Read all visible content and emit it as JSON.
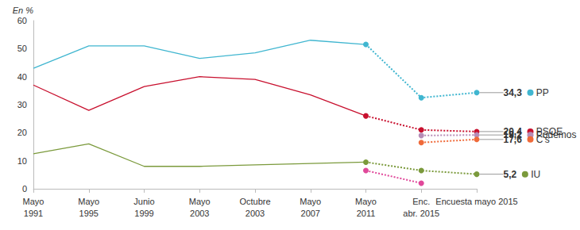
{
  "chart_data": {
    "type": "line",
    "ylabel": "En %",
    "categories": [
      "Mayo\n1991",
      "Mayo\n1995",
      "Junio\n1999",
      "Mayo\n2003",
      "Octubre\n2003",
      "Mayo\n2007",
      "Mayo\n2011",
      "Enc.\nabr. 2015",
      "Encuesta mayo 2015"
    ],
    "ylim": [
      0,
      60
    ],
    "yticks": [
      0,
      10,
      20,
      30,
      40,
      50,
      60
    ],
    "grid": false,
    "data_labels": true,
    "series": [
      {
        "color": "#40b6d0",
        "line_style": "solid",
        "marker": "none",
        "values": [
          43,
          51,
          51,
          46.5,
          48.5,
          53,
          51.5,
          null,
          null
        ]
      },
      {
        "name": "PP",
        "color": "#40b6d0",
        "line_style": "dotted",
        "marker": "circle",
        "values": [
          null,
          null,
          null,
          null,
          null,
          null,
          51.5,
          32.5,
          34.3
        ],
        "value_labels": [
          null,
          null,
          null,
          null,
          null,
          null,
          null,
          null,
          "34,3"
        ]
      },
      {
        "color": "#c8102e",
        "line_style": "solid",
        "marker": "none",
        "values": [
          37,
          28,
          36.5,
          40,
          39,
          33.5,
          26,
          null,
          null
        ]
      },
      {
        "name": "PSOE",
        "color": "#c8102e",
        "line_style": "dotted",
        "marker": "circle",
        "values": [
          null,
          null,
          null,
          null,
          null,
          null,
          26,
          21,
          20.4
        ],
        "value_labels": [
          null,
          null,
          null,
          null,
          null,
          null,
          null,
          null,
          "20,4"
        ]
      },
      {
        "name": "Podemos",
        "color": "#b68cb6",
        "line_style": "dotted",
        "marker": "circle",
        "values": [
          null,
          null,
          null,
          null,
          null,
          null,
          null,
          19,
          19.2
        ],
        "value_labels": [
          null,
          null,
          null,
          null,
          null,
          null,
          null,
          null,
          "19,2"
        ]
      },
      {
        "name": "C's",
        "color": "#ef6a3a",
        "line_style": "dotted",
        "marker": "circle",
        "values": [
          null,
          null,
          null,
          null,
          null,
          null,
          null,
          16.5,
          17.6
        ],
        "value_labels": [
          null,
          null,
          null,
          null,
          null,
          null,
          null,
          null,
          "17,6"
        ]
      },
      {
        "color": "#7b9a3c",
        "line_style": "solid",
        "marker": "none",
        "values": [
          12.5,
          16,
          8,
          8,
          8.5,
          9,
          9.5,
          null,
          null
        ]
      },
      {
        "name": "IU",
        "color": "#7b9a3c",
        "line_style": "dotted",
        "marker": "circle",
        "values": [
          null,
          null,
          null,
          null,
          null,
          null,
          9.5,
          6.5,
          5.2
        ],
        "value_labels": [
          null,
          null,
          null,
          null,
          null,
          null,
          null,
          null,
          "5,2"
        ]
      },
      {
        "color": "#e0489a",
        "line_style": "dotted",
        "marker": "circle",
        "values": [
          null,
          null,
          null,
          null,
          null,
          null,
          6.5,
          2,
          null
        ]
      }
    ]
  }
}
